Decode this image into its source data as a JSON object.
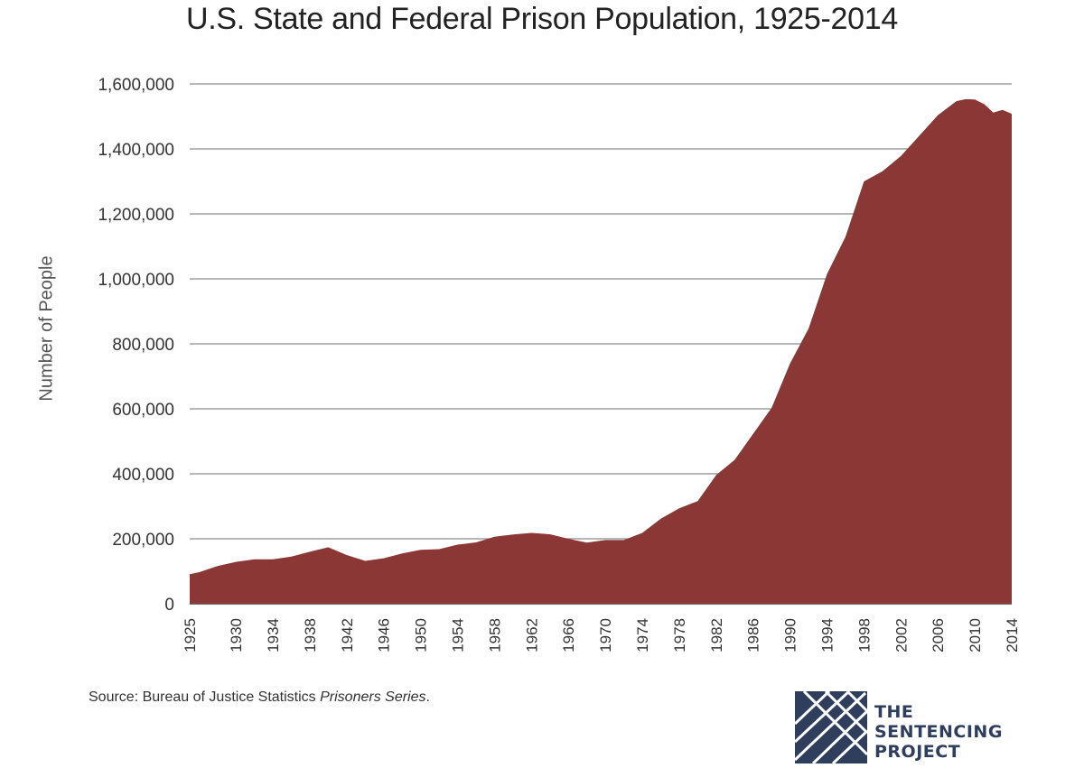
{
  "chart_data": {
    "type": "area",
    "title": "U.S. State and Federal Prison Population, 1925-2014",
    "xlabel": "",
    "ylabel": "Number of People",
    "ylim": [
      0,
      1600000
    ],
    "yticks": [
      0,
      200000,
      400000,
      600000,
      800000,
      1000000,
      1200000,
      1400000,
      1600000
    ],
    "ytick_labels": [
      "0",
      "200,000",
      "400,000",
      "600,000",
      "800,000",
      "1,000,000",
      "1,200,000",
      "1,400,000",
      "1,600,000"
    ],
    "xlim": [
      1925,
      2014
    ],
    "xticks": [
      1925,
      1930,
      1934,
      1938,
      1942,
      1946,
      1950,
      1954,
      1958,
      1962,
      1966,
      1970,
      1974,
      1978,
      1982,
      1986,
      1990,
      1994,
      1998,
      2002,
      2006,
      2010,
      2014
    ],
    "xtick_labels": [
      "1925",
      "1930",
      "1934",
      "1938",
      "1942",
      "1946",
      "1950",
      "1954",
      "1958",
      "1962",
      "1966",
      "1970",
      "1974",
      "1978",
      "1982",
      "1986",
      "1990",
      "1994",
      "1998",
      "2002",
      "2006",
      "2010",
      "2014"
    ],
    "grid": true,
    "fill_color": "#8b3736",
    "x": [
      1925,
      1926,
      1928,
      1930,
      1932,
      1934,
      1936,
      1938,
      1940,
      1942,
      1944,
      1946,
      1948,
      1950,
      1952,
      1954,
      1956,
      1958,
      1960,
      1962,
      1964,
      1966,
      1968,
      1970,
      1972,
      1974,
      1976,
      1978,
      1980,
      1982,
      1984,
      1986,
      1988,
      1990,
      1992,
      1994,
      1996,
      1998,
      2000,
      2002,
      2004,
      2006,
      2008,
      2009,
      2010,
      2011,
      2012,
      2013,
      2014
    ],
    "values": [
      91000,
      97000,
      116000,
      129000,
      137000,
      137000,
      145000,
      160000,
      174000,
      150000,
      132000,
      140000,
      155000,
      166000,
      168000,
      182000,
      189000,
      206000,
      213000,
      218000,
      214000,
      200000,
      188000,
      196000,
      196000,
      218000,
      262000,
      294000,
      316000,
      396000,
      443000,
      523000,
      603000,
      740000,
      847000,
      1015000,
      1130000,
      1300000,
      1331000,
      1378000,
      1441000,
      1504000,
      1547000,
      1553000,
      1552000,
      1538000,
      1512000,
      1520000,
      1508000
    ]
  },
  "source": {
    "prefix": "Source: Bureau of Justice Statistics ",
    "italic": "Prisoners Series",
    "suffix": "."
  },
  "logo": {
    "lines": [
      "THE",
      "SENTENCING",
      "PROJECT"
    ],
    "color": "#2f3e5c"
  }
}
